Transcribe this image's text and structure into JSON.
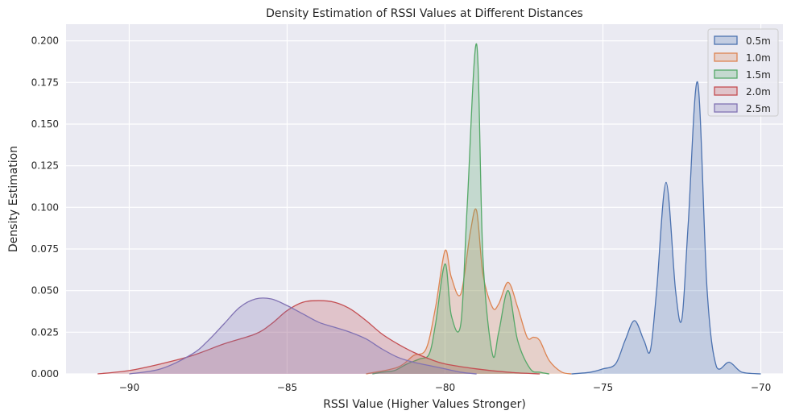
{
  "chart_data": {
    "type": "area",
    "title": "Density Estimation of RSSI Values at Different Distances",
    "xlabel": "RSSI Value (Higher Values Stronger)",
    "ylabel": "Density Estimation",
    "xlim": [
      -92.0,
      -69.3
    ],
    "ylim": [
      0.0,
      0.21
    ],
    "xticks": [
      -90,
      -85,
      -80,
      -75,
      -70
    ],
    "xtick_labels": [
      "−90",
      "−85",
      "−80",
      "−75",
      "−70"
    ],
    "yticks": [
      0.0,
      0.025,
      0.05,
      0.075,
      0.1,
      0.125,
      0.15,
      0.175,
      0.2
    ],
    "ytick_labels": [
      "0.000",
      "0.025",
      "0.050",
      "0.075",
      "0.100",
      "0.125",
      "0.150",
      "0.175",
      "0.200"
    ],
    "grid": true,
    "legend_position": "top-right",
    "series": [
      {
        "name": "0.5m",
        "color": "#4c72b0",
        "x": [
          -76.0,
          -75.4,
          -75.0,
          -74.6,
          -74.3,
          -74.0,
          -73.7,
          -73.5,
          -73.3,
          -73.0,
          -72.7,
          -72.5,
          -72.3,
          -72.0,
          -71.7,
          -71.4,
          -71.0,
          -70.6,
          -70.0
        ],
        "y": [
          0.0,
          0.001,
          0.003,
          0.006,
          0.02,
          0.032,
          0.02,
          0.014,
          0.05,
          0.115,
          0.05,
          0.033,
          0.09,
          0.175,
          0.05,
          0.004,
          0.007,
          0.001,
          0.0
        ]
      },
      {
        "name": "1.0m",
        "color": "#dd8452",
        "x": [
          -82.5,
          -81.5,
          -81.0,
          -80.6,
          -80.3,
          -80.0,
          -79.8,
          -79.5,
          -79.2,
          -79.0,
          -78.8,
          -78.5,
          -78.3,
          -78.0,
          -77.7,
          -77.4,
          -77.2,
          -77.0,
          -76.7,
          -76.3,
          -76.0
        ],
        "y": [
          0.0,
          0.004,
          0.011,
          0.015,
          0.04,
          0.074,
          0.058,
          0.048,
          0.085,
          0.098,
          0.06,
          0.04,
          0.042,
          0.055,
          0.04,
          0.022,
          0.022,
          0.02,
          0.008,
          0.001,
          0.0
        ]
      },
      {
        "name": "1.5m",
        "color": "#55a868",
        "x": [
          -82.3,
          -82.0,
          -81.6,
          -81.2,
          -80.8,
          -80.5,
          -80.3,
          -80.0,
          -79.8,
          -79.5,
          -79.3,
          -79.0,
          -78.8,
          -78.5,
          -78.3,
          -78.0,
          -77.7,
          -77.3,
          -77.0,
          -76.7
        ],
        "y": [
          0.0,
          0.001,
          0.002,
          0.006,
          0.009,
          0.012,
          0.03,
          0.066,
          0.035,
          0.03,
          0.1,
          0.198,
          0.07,
          0.012,
          0.025,
          0.05,
          0.02,
          0.003,
          0.001,
          0.0
        ]
      },
      {
        "name": "2.0m",
        "color": "#c44e52",
        "x": [
          -91.0,
          -90.0,
          -89.0,
          -88.0,
          -87.0,
          -86.0,
          -85.5,
          -85.0,
          -84.5,
          -84.0,
          -83.5,
          -83.0,
          -82.5,
          -82.0,
          -81.5,
          -81.0,
          -80.5,
          -80.0,
          -79.0,
          -78.0,
          -77.0
        ],
        "y": [
          0.0,
          0.002,
          0.006,
          0.011,
          0.018,
          0.024,
          0.03,
          0.038,
          0.043,
          0.044,
          0.043,
          0.039,
          0.032,
          0.024,
          0.018,
          0.013,
          0.009,
          0.006,
          0.003,
          0.001,
          0.0
        ]
      },
      {
        "name": "2.5m",
        "color": "#8172b3",
        "x": [
          -90.0,
          -89.0,
          -88.0,
          -87.5,
          -87.0,
          -86.5,
          -86.0,
          -85.5,
          -85.0,
          -84.5,
          -84.0,
          -83.5,
          -83.0,
          -82.5,
          -82.0,
          -81.5,
          -81.0,
          -80.5,
          -80.0,
          -79.5,
          -79.0
        ],
        "y": [
          0.0,
          0.003,
          0.012,
          0.02,
          0.03,
          0.04,
          0.045,
          0.045,
          0.041,
          0.036,
          0.031,
          0.028,
          0.025,
          0.021,
          0.015,
          0.01,
          0.007,
          0.005,
          0.003,
          0.001,
          0.0
        ]
      }
    ]
  }
}
